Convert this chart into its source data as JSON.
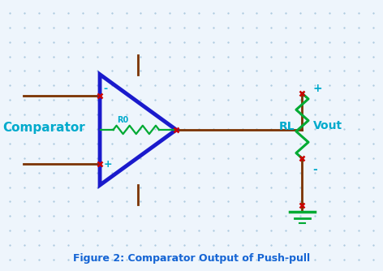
{
  "title": "Figure 2: Comparator Output of Push-pull",
  "title_color": "#1464d4",
  "bg_color": "#eef5fc",
  "dot_color": "#aac8de",
  "wire_color": "#7b3300",
  "node_color": "#cc0000",
  "resistor_color": "#00aa33",
  "triangle_color": "#1a1acc",
  "label_color": "#00aacc",
  "gnd_color": "#00aa33",
  "comparator_label": "Comparator",
  "r0_label": "R0",
  "rl_label": "RL",
  "vout_label": "Vout",
  "plus_label": "+",
  "minus_label": "-",
  "plus_vout": "+",
  "minus_vout": "-",
  "figw": 4.72,
  "figh": 3.34,
  "dpi": 100
}
